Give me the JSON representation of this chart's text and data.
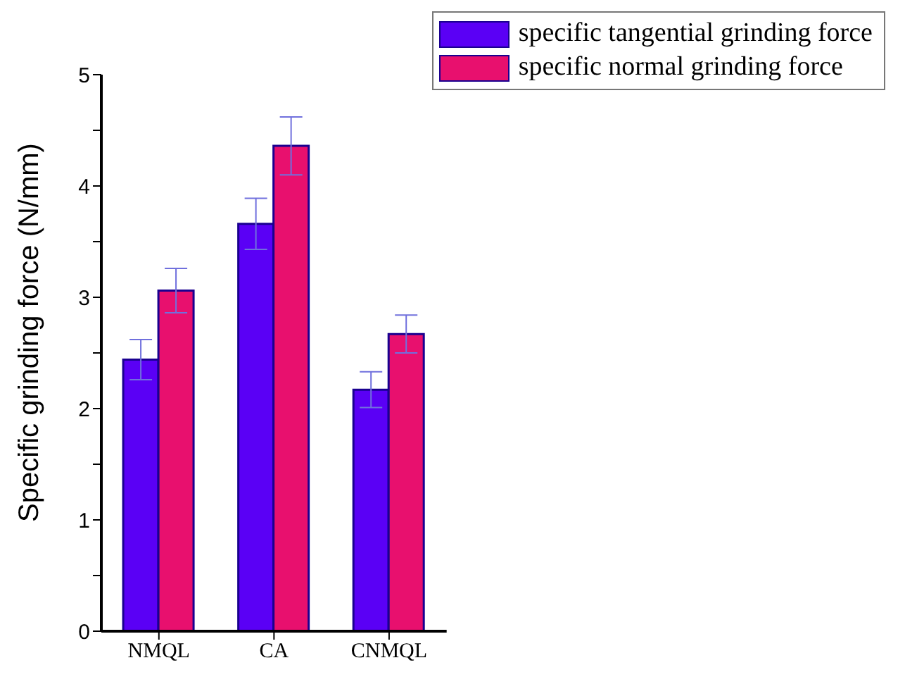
{
  "chart_data": {
    "type": "bar",
    "categories": [
      "NMQL",
      "CA",
      "CNMQL"
    ],
    "ylabel": "Specific grinding force (N/mm)",
    "series": [
      {
        "name": "specific tangential grinding force",
        "color": "#5a00f5",
        "values": [
          2.44,
          3.66,
          2.17
        ],
        "errors": [
          0.18,
          0.23,
          0.16
        ]
      },
      {
        "name": "specific normal grinding force",
        "color": "#e8106e",
        "values": [
          3.06,
          4.36,
          2.67
        ],
        "errors": [
          0.2,
          0.26,
          0.17
        ]
      }
    ],
    "ylim": [
      0,
      5
    ],
    "yticks": [
      0,
      {
        "value": 0.5,
        "label": null
      },
      1,
      {
        "value": 1.5,
        "label": null
      },
      2,
      {
        "value": 2.5,
        "label": null
      },
      3,
      {
        "value": 3.5,
        "label": null
      },
      4,
      {
        "value": 4.5,
        "label": null
      },
      5
    ],
    "legend": "top right",
    "grid": false
  }
}
